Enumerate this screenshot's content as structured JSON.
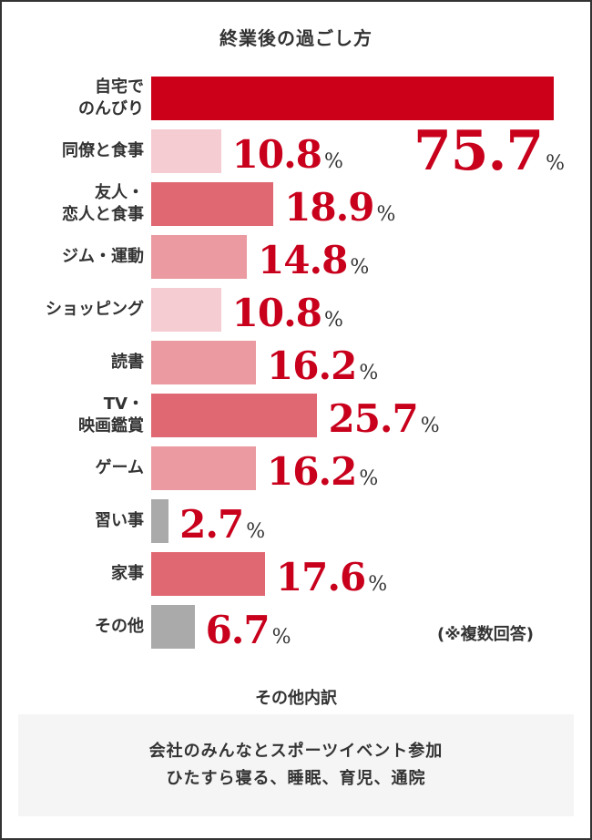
{
  "chart_data": {
    "type": "bar",
    "orientation": "horizontal",
    "title": "終業後の過ごし方",
    "categories": [
      "自宅で\nのんびり",
      "同僚と食事",
      "友人・\n恋人と食事",
      "ジム・運動",
      "ショッピング",
      "読書",
      "TV・\n映画鑑賞",
      "ゲーム",
      "習い事",
      "家事",
      "その他"
    ],
    "values": [
      75.7,
      10.8,
      18.9,
      14.8,
      10.8,
      16.2,
      25.7,
      16.2,
      2.7,
      17.6,
      6.7
    ],
    "value_labels": [
      "75.7",
      "10.8",
      "18.9",
      "14.8",
      "10.8",
      "16.2",
      "25.7",
      "16.2",
      "2.7",
      "17.6",
      "6.7"
    ],
    "unit": "%",
    "colors": [
      "#cc0018",
      "#f4ccd2",
      "#e06872",
      "#ea9aa0",
      "#f4ccd2",
      "#ea9aa0",
      "#e06872",
      "#ea9aa0",
      "#aaaaaa",
      "#e06872",
      "#aaaaaa"
    ],
    "value_color": "#c8001c",
    "note": "(※複数回答)",
    "grid": false
  },
  "other": {
    "title": "その他内訳",
    "lines": [
      "会社のみんなとスポーツイベント参加",
      "ひたすら寝る、睡眠、育児、通院"
    ]
  }
}
